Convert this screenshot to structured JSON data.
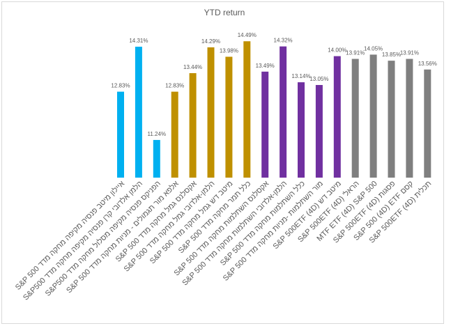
{
  "chart_data": {
    "type": "bar",
    "title": "YTD return",
    "categories": [
      "איילון מיטב פנסיה מקיפה מחקה מדד S&P 500",
      "הלמן אלדובי קרן פנסיה מקיפה מחקה מדד S&P500",
      "הפניקס פנסיה מקיפה מסלול מחקה מדד S&P500",
      "אלפא מור תגמולים - מניות מחקה מדד S&P 500",
      "אקסלנס גמל מחקה מדד S&P 500",
      "הלמן-אלדובי גמל מחקה מדד S&P 500",
      "מיטב דש גמל מחקה מדד S&P 500",
      "כלל תמר מחקה מדד S&P 500",
      "אקסלנס השתלמות מחקה מדד S&P 500",
      "הלמן-אלדובי השתלמות מחקה מדד S&P 500",
      "כלל השתלמות מחקה מדד S&P 500",
      "מור השתלמות -מניות מחקה מדד S&P 500",
      "מיטב דש S&P 500ETF (4D)",
      "הראל' S&P 500ETF (4D)",
      "MTF ETF (4D) S&P 500",
      "פסגות S&P 500ETF (4D)",
      "קסם S&P 500 (4D) ETF",
      "תכלית S&P 500ETF (4D)"
    ],
    "values": [
      12.83,
      14.31,
      11.24,
      12.83,
      13.44,
      14.29,
      13.98,
      14.49,
      13.49,
      14.32,
      13.14,
      13.05,
      14.0,
      13.91,
      14.05,
      13.85,
      13.91,
      13.56
    ],
    "value_labels": [
      "12.83%",
      "14.31%",
      "11.24%",
      "12.83%",
      "13.44%",
      "14.29%",
      "13.98%",
      "14.49%",
      "13.49%",
      "14.32%",
      "13.14%",
      "13.05%",
      "14.00%",
      "13.91%",
      "14.05%",
      "13.85%",
      "13.91%",
      "13.56%"
    ],
    "colors": [
      "#00b0f0",
      "#00b0f0",
      "#00b0f0",
      "#bf9000",
      "#bf9000",
      "#bf9000",
      "#bf9000",
      "#bf9000",
      "#7030a0",
      "#7030a0",
      "#7030a0",
      "#7030a0",
      "#7030a0",
      "#7f7f7f",
      "#7f7f7f",
      "#7f7f7f",
      "#7f7f7f",
      "#7f7f7f"
    ],
    "ylim": [
      10,
      15
    ]
  }
}
